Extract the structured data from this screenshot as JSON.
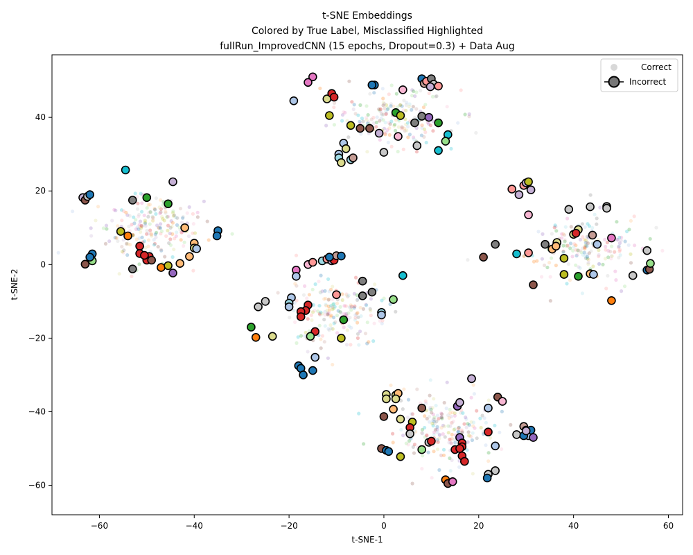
{
  "chart_data": {
    "type": "scatter",
    "title": [
      "t-SNE Embeddings",
      "Colored by True Label, Misclassified Highlighted",
      "fullRun_ImprovedCNN (15 epochs, Dropout=0.3) + Data Aug"
    ],
    "xlabel": "t-SNE-1",
    "ylabel": "t-SNE-2",
    "xlim": [
      -70,
      63
    ],
    "ylim": [
      -68,
      57
    ],
    "xticks": [
      -60,
      -40,
      -20,
      0,
      20,
      40,
      60
    ],
    "yticks": [
      -60,
      -40,
      -20,
      0,
      20,
      40
    ],
    "xtick_labels": [
      "−60",
      "−40",
      "−20",
      "0",
      "20",
      "40",
      "60"
    ],
    "ytick_labels": [
      "−60",
      "−40",
      "−20",
      "0",
      "20",
      "40"
    ],
    "grid": false,
    "legend": {
      "placement": "top-right",
      "entries": [
        {
          "label": "Correct",
          "marker": "small-gray-dot"
        },
        {
          "label": "Incorrect",
          "marker": "large-outlined-dot"
        }
      ]
    },
    "palette": [
      "#1f77b4",
      "#aec7e8",
      "#ff7f0e",
      "#ffbb78",
      "#2ca02c",
      "#98df8a",
      "#d62728",
      "#ff9896",
      "#9467bd",
      "#c5b0d5",
      "#8c564b",
      "#c49c94",
      "#e377c2",
      "#f7b6d2",
      "#7f7f7f",
      "#c7c7c7",
      "#bcbd22",
      "#dbdb8d",
      "#17becf",
      "#9edae5"
    ],
    "correct_clusters": [
      {
        "center": [
          2,
          40
        ],
        "spread": [
          11,
          7
        ],
        "count": 190
      },
      {
        "center": [
          -50,
          10
        ],
        "spread": [
          10,
          8
        ],
        "count": 200
      },
      {
        "center": [
          42,
          5
        ],
        "spread": [
          11,
          8
        ],
        "count": 190
      },
      {
        "center": [
          -10,
          -13
        ],
        "spread": [
          10,
          8
        ],
        "count": 190
      },
      {
        "center": [
          13,
          -45
        ],
        "spread": [
          10,
          9
        ],
        "count": 200
      }
    ],
    "incorrect_points": [
      [
        -63.5,
        18.2,
        9
      ],
      [
        -63,
        17.5,
        10
      ],
      [
        -62.5,
        18.5,
        15
      ],
      [
        -62,
        19,
        0
      ],
      [
        -53,
        17.5,
        14
      ],
      [
        -54.5,
        25.7,
        18
      ],
      [
        -44.5,
        22.5,
        9
      ],
      [
        -45.5,
        16.5,
        4
      ],
      [
        -50,
        18.2,
        4
      ],
      [
        -42,
        10,
        3
      ],
      [
        -35,
        9.2,
        0
      ],
      [
        -35.2,
        7.8,
        0
      ],
      [
        -40,
        5.8,
        3
      ],
      [
        -40,
        4.5,
        17
      ],
      [
        -39.5,
        4.3,
        1
      ],
      [
        -55.5,
        9,
        16
      ],
      [
        -54,
        7.8,
        2
      ],
      [
        -51.5,
        5,
        6
      ],
      [
        -49.5,
        2.2,
        6
      ],
      [
        -50,
        1.2,
        6
      ],
      [
        -51.5,
        3,
        6
      ],
      [
        -50.5,
        2.5,
        6
      ],
      [
        -49,
        1.2,
        10
      ],
      [
        -47,
        -0.8,
        2
      ],
      [
        -45.5,
        -0.3,
        16
      ],
      [
        -43,
        0.3,
        3
      ],
      [
        -41,
        2.2,
        3
      ],
      [
        -53,
        -1.2,
        14
      ],
      [
        -44.5,
        -2.3,
        8
      ],
      [
        -63,
        0.1,
        10
      ],
      [
        -61.5,
        1,
        5
      ],
      [
        -61.5,
        2.9,
        0
      ],
      [
        -62,
        2,
        0
      ],
      [
        -15,
        51,
        12
      ],
      [
        -16,
        49.5,
        12
      ],
      [
        -12,
        45,
        17
      ],
      [
        -11,
        46.5,
        6
      ],
      [
        -10.5,
        45.5,
        6
      ],
      [
        -11.5,
        40.5,
        16
      ],
      [
        -19,
        44.5,
        1
      ],
      [
        -2,
        48.8,
        0
      ],
      [
        -2.5,
        48.8,
        0
      ],
      [
        4,
        47.5,
        13
      ],
      [
        8,
        50.5,
        0
      ],
      [
        8.5,
        49.2,
        11
      ],
      [
        9,
        49.8,
        7
      ],
      [
        10,
        50.5,
        14
      ],
      [
        10.5,
        49,
        15
      ],
      [
        9.8,
        48.3,
        9
      ],
      [
        11.5,
        48.5,
        7
      ],
      [
        2.5,
        41.3,
        4
      ],
      [
        3.5,
        40.5,
        16
      ],
      [
        8,
        40.3,
        14
      ],
      [
        9.5,
        40,
        8
      ],
      [
        11.5,
        38.5,
        4
      ],
      [
        6.5,
        38.5,
        14
      ],
      [
        -7,
        37.8,
        16
      ],
      [
        -5,
        37,
        10
      ],
      [
        -3,
        37,
        10
      ],
      [
        -1,
        35.7,
        9
      ],
      [
        3,
        34.8,
        13
      ],
      [
        7,
        32.3,
        15
      ],
      [
        13.5,
        35.3,
        18
      ],
      [
        13,
        33.5,
        5
      ],
      [
        11.5,
        31,
        18
      ],
      [
        -8.5,
        33,
        1
      ],
      [
        -8,
        31.5,
        17
      ],
      [
        -9.5,
        30,
        1
      ],
      [
        -9.5,
        29,
        19
      ],
      [
        -9,
        27.7,
        17
      ],
      [
        -7,
        28.5,
        19
      ],
      [
        -6.5,
        29,
        11
      ],
      [
        0,
        30.5,
        15
      ],
      [
        27,
        20.5,
        7
      ],
      [
        28.5,
        19,
        9
      ],
      [
        29.5,
        21.5,
        7
      ],
      [
        30,
        22.2,
        9
      ],
      [
        30.5,
        22.5,
        16
      ],
      [
        31,
        20.3,
        9
      ],
      [
        30.5,
        13.5,
        13
      ],
      [
        39,
        15,
        15
      ],
      [
        43.5,
        15.7,
        15
      ],
      [
        47,
        15.8,
        14
      ],
      [
        47,
        15.3,
        15
      ],
      [
        34,
        5.5,
        14
      ],
      [
        35.5,
        4.2,
        3
      ],
      [
        36.5,
        6,
        17
      ],
      [
        36.3,
        5,
        3
      ],
      [
        40,
        8.2,
        17
      ],
      [
        41,
        9.5,
        17
      ],
      [
        40.5,
        8.5,
        6
      ],
      [
        44,
        8,
        11
      ],
      [
        45,
        5.5,
        1
      ],
      [
        48,
        7.2,
        12
      ],
      [
        38,
        1.7,
        16
      ],
      [
        23.5,
        5.5,
        14
      ],
      [
        21,
        2,
        10
      ],
      [
        28,
        2.9,
        18
      ],
      [
        30.5,
        3.2,
        7
      ],
      [
        38,
        -2.7,
        16
      ],
      [
        41,
        -3.2,
        4
      ],
      [
        43.5,
        -2.5,
        3
      ],
      [
        44.2,
        -2.7,
        1
      ],
      [
        31.5,
        -5.5,
        10
      ],
      [
        48,
        -9.8,
        2
      ],
      [
        52.5,
        -3,
        15
      ],
      [
        55.5,
        -1.5,
        0
      ],
      [
        55.5,
        3.8,
        15
      ],
      [
        56,
        -1.3,
        10
      ],
      [
        56.2,
        0.3,
        5
      ],
      [
        -16,
        0,
        13
      ],
      [
        -15,
        0.6,
        7
      ],
      [
        -13,
        1,
        19
      ],
      [
        -12,
        1.5,
        7
      ],
      [
        -11,
        1,
        9
      ],
      [
        -10.5,
        1.2,
        6
      ],
      [
        -10,
        2.4,
        11
      ],
      [
        -11.5,
        2,
        0
      ],
      [
        -9,
        2.3,
        0
      ],
      [
        -18.5,
        -1.5,
        12
      ],
      [
        -18.5,
        -3.2,
        1
      ],
      [
        -19.5,
        -9,
        1
      ],
      [
        -20,
        -10.5,
        19
      ],
      [
        -20,
        -11.5,
        1
      ],
      [
        -25,
        -10,
        15
      ],
      [
        -26.5,
        -11.5,
        15
      ],
      [
        -16,
        -11,
        6
      ],
      [
        -16.5,
        -12.5,
        6
      ],
      [
        -17.5,
        -12.8,
        6
      ],
      [
        -17.5,
        -14.2,
        6
      ],
      [
        -14.5,
        -18.2,
        6
      ],
      [
        -15.5,
        -19.5,
        5
      ],
      [
        -10,
        -8.2,
        7
      ],
      [
        -4.5,
        -4.5,
        14
      ],
      [
        -4.5,
        -8.5,
        14
      ],
      [
        -2.5,
        -7.5,
        14
      ],
      [
        -8.5,
        -15,
        4
      ],
      [
        -9,
        -20,
        16
      ],
      [
        -28,
        -17,
        4
      ],
      [
        -27,
        -19.8,
        2
      ],
      [
        -23.5,
        -19.5,
        17
      ],
      [
        -0.5,
        -13,
        19
      ],
      [
        -0.5,
        -13.7,
        1
      ],
      [
        2,
        -9.5,
        5
      ],
      [
        4,
        -3,
        18
      ],
      [
        -14.5,
        -25.2,
        1
      ],
      [
        -18,
        -27.5,
        0
      ],
      [
        -17.5,
        -28.2,
        0
      ],
      [
        -15,
        -28.8,
        0
      ],
      [
        -17,
        -30,
        0
      ],
      [
        0.5,
        -35.3,
        17
      ],
      [
        2.5,
        -35.5,
        17
      ],
      [
        3,
        -35,
        3
      ],
      [
        0.5,
        -36.5,
        17
      ],
      [
        2.5,
        -36.5,
        17
      ],
      [
        2,
        -39.3,
        3
      ],
      [
        3.5,
        -42,
        17
      ],
      [
        0,
        -41.3,
        10
      ],
      [
        8,
        -39,
        10
      ],
      [
        6,
        -42.8,
        16
      ],
      [
        5.5,
        -44.3,
        6
      ],
      [
        5.5,
        -46,
        15
      ],
      [
        8,
        -50.3,
        5
      ],
      [
        -0.5,
        -50,
        10
      ],
      [
        0.5,
        -50.5,
        0
      ],
      [
        1,
        -50.8,
        0
      ],
      [
        3.5,
        -52.2,
        16
      ],
      [
        9.5,
        -48.3,
        15
      ],
      [
        10,
        -48,
        6
      ],
      [
        16,
        -47,
        8
      ],
      [
        16.5,
        -48.5,
        6
      ],
      [
        16.5,
        -49.5,
        6
      ],
      [
        15,
        -50.3,
        6
      ],
      [
        16,
        -50,
        6
      ],
      [
        16.5,
        -52,
        6
      ],
      [
        17,
        -53.5,
        6
      ],
      [
        15.5,
        -38.5,
        8
      ],
      [
        16,
        -37.5,
        9
      ],
      [
        18.5,
        -31,
        15
      ],
      [
        18.5,
        -31,
        9
      ],
      [
        22,
        -39,
        1
      ],
      [
        24,
        -36,
        10
      ],
      [
        25,
        -37.2,
        13
      ],
      [
        22,
        -45.5,
        6
      ],
      [
        23.5,
        -49.3,
        1
      ],
      [
        28,
        -46.2,
        15
      ],
      [
        29.5,
        -44,
        11
      ],
      [
        30,
        -45,
        13
      ],
      [
        30.5,
        -46.5,
        1
      ],
      [
        29.5,
        -46.5,
        0
      ],
      [
        31,
        -45,
        0
      ],
      [
        30,
        -45.2,
        9
      ],
      [
        31.5,
        -47,
        8
      ],
      [
        13,
        -58.5,
        2
      ],
      [
        13.5,
        -59.5,
        10
      ],
      [
        14.5,
        -59,
        12
      ],
      [
        22,
        -57,
        15
      ],
      [
        23.5,
        -56,
        15
      ],
      [
        21.8,
        -58,
        0
      ]
    ]
  }
}
